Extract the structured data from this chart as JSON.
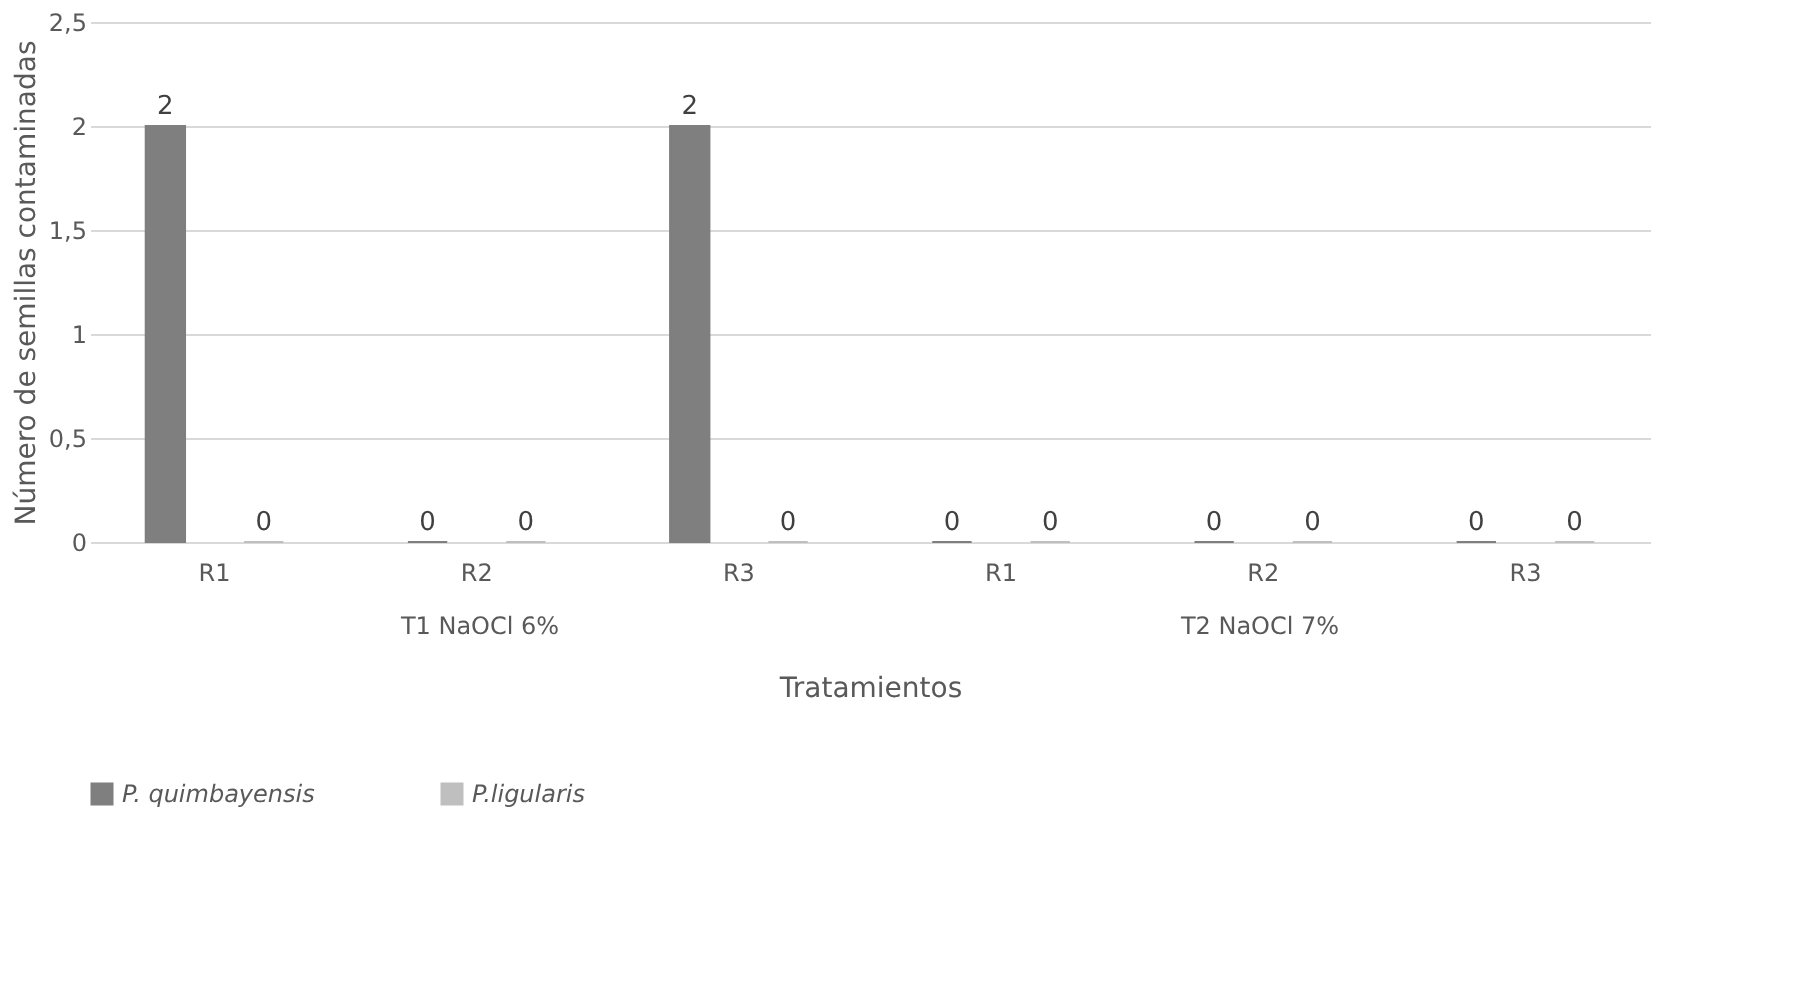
{
  "chart_data": {
    "type": "bar",
    "ylabel": "Número de semillas contaminadas",
    "xlabel": "Tratamientos",
    "categories": [
      "R1",
      "R2",
      "R3",
      "R1",
      "R2",
      "R3"
    ],
    "annotations": [
      "T1 NaOCl 6%",
      "T2 NaOCl 7%"
    ],
    "series": [
      {
        "name": "P. quimbayensis",
        "color": "#7f7f7f",
        "values": [
          2,
          0,
          2,
          0,
          0,
          0
        ]
      },
      {
        "name": "P.ligularis",
        "color": "#bfbfbf",
        "values": [
          0,
          0,
          0,
          0,
          0,
          0
        ]
      }
    ],
    "ylim": [
      0,
      2.5
    ],
    "yticks": [
      0,
      {
        "value": 0.5,
        "label": "0,5"
      },
      1,
      {
        "value": 1.5,
        "label": "1,5"
      },
      2,
      {
        "value": 2.5,
        "label": "2,5"
      }
    ],
    "grid": "y",
    "legend": "bottom",
    "data_labels": true
  }
}
